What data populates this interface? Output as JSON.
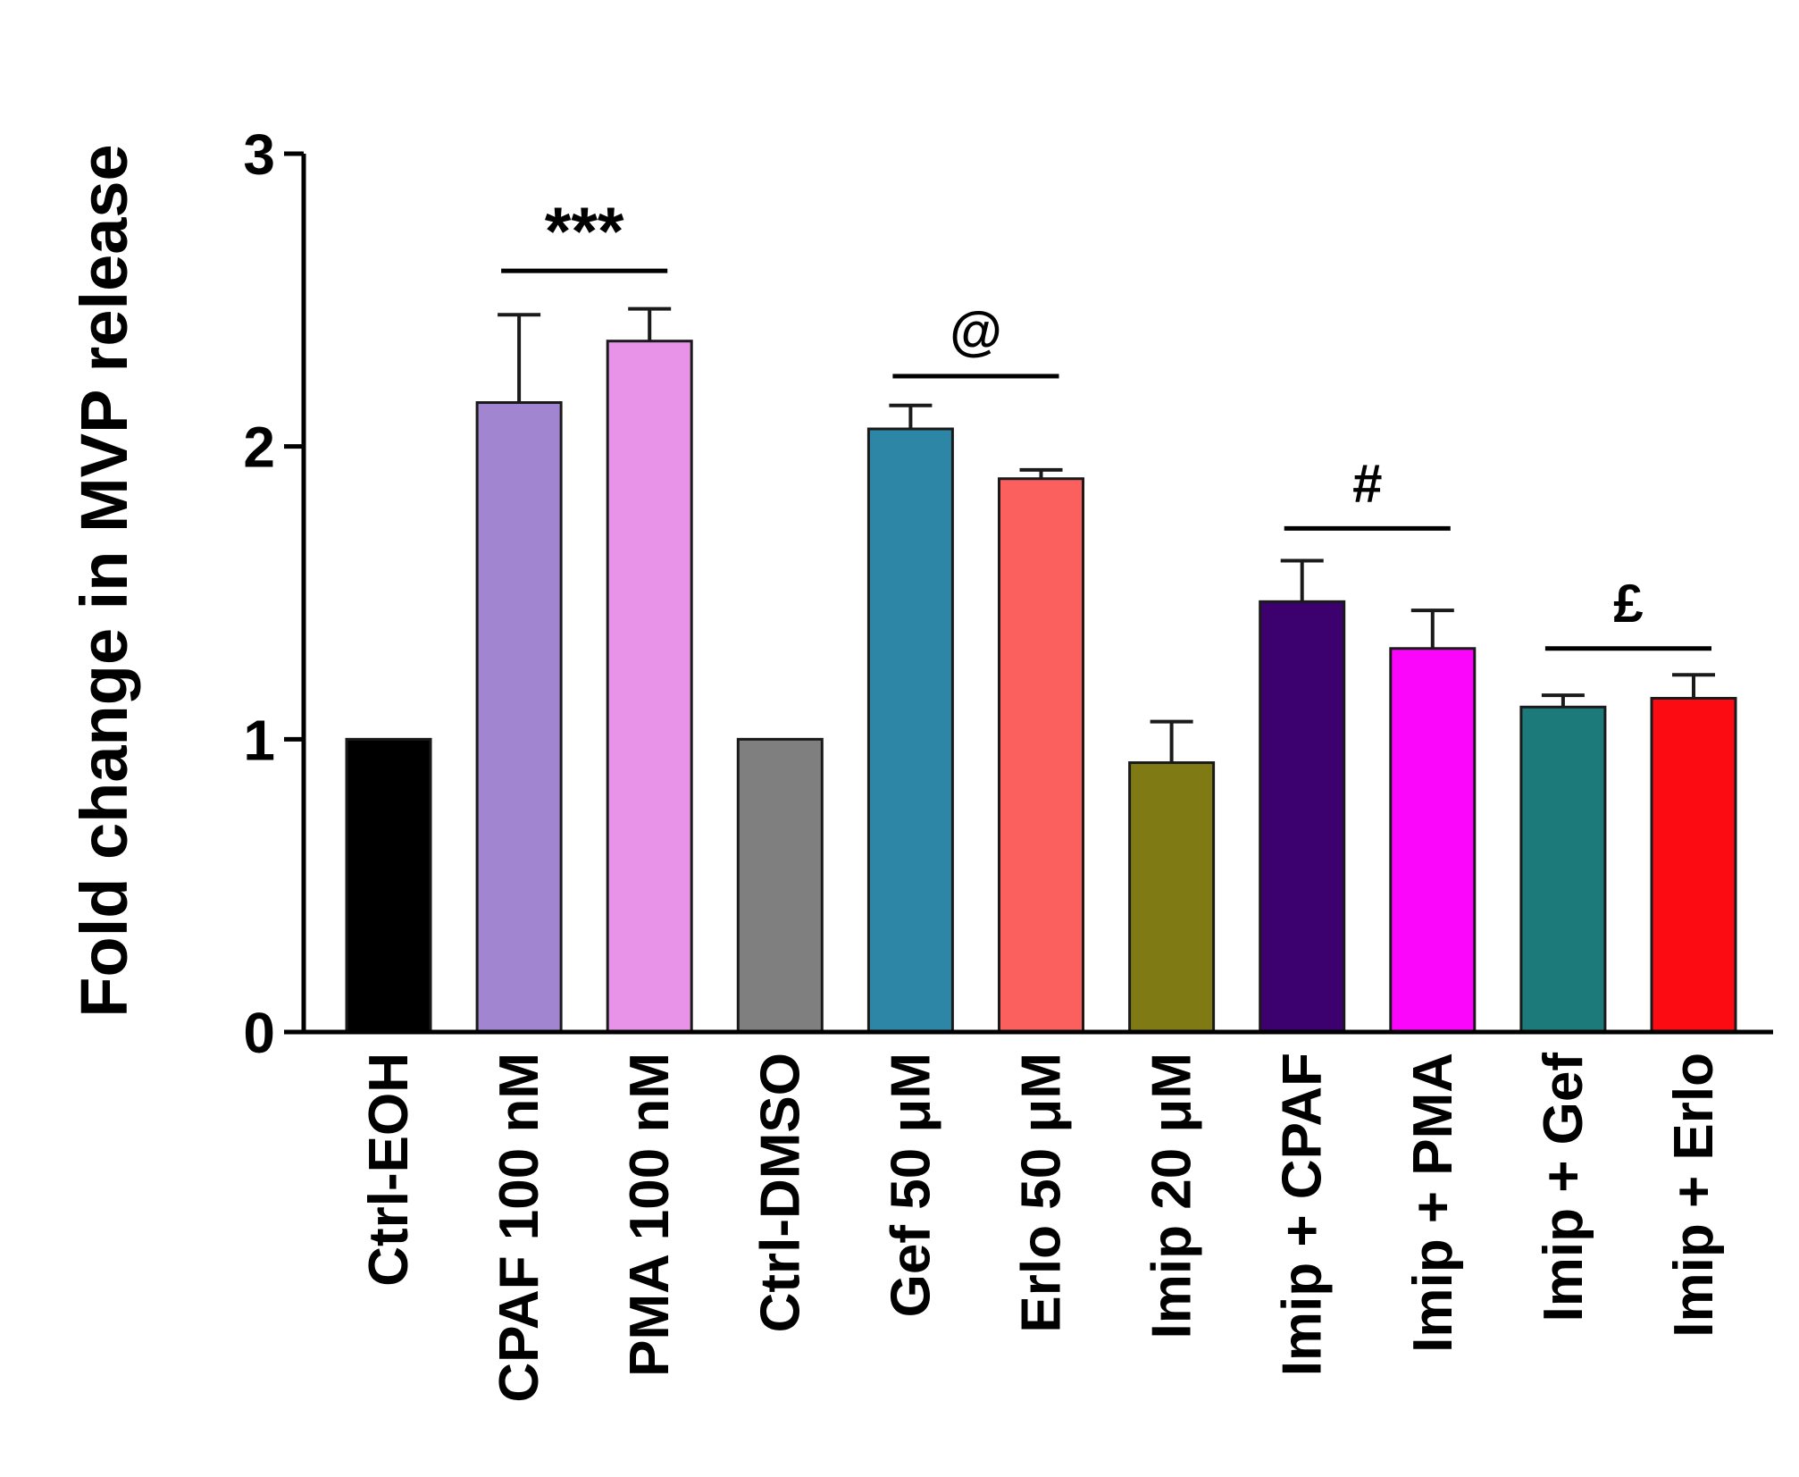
{
  "chart_data": {
    "type": "bar",
    "title": "",
    "xlabel": "",
    "ylabel": "Fold change in MVP release",
    "ylim": [
      0,
      3
    ],
    "yticks": [
      0,
      1,
      2,
      3
    ],
    "grid": false,
    "legend": "none",
    "categories": [
      "Ctrl-EOH",
      "CPAF 100 nM",
      "PMA 100 nM",
      "Ctrl-DMSO",
      "Gef 50 μM",
      "Erlo 50 μM",
      "Imip 20 μM",
      "Imip + CPAF",
      "Imip + PMA",
      "Imip + Gef",
      "Imip + Erlo"
    ],
    "values": [
      1.0,
      2.15,
      2.36,
      1.0,
      2.06,
      1.89,
      0.92,
      1.47,
      1.31,
      1.11,
      1.14
    ],
    "errors": [
      0.0,
      0.3,
      0.11,
      0.0,
      0.08,
      0.03,
      0.14,
      0.14,
      0.13,
      0.04,
      0.08
    ],
    "colors": [
      "#000000",
      "#a285d1",
      "#e893e8",
      "#7f7f7f",
      "#2e86a6",
      "#fb605e",
      "#7f7a14",
      "#3c006f",
      "#fb06fb",
      "#1c7a7a",
      "#fc0c12"
    ],
    "annotations": [
      {
        "label": "***",
        "from": 1,
        "to": 2,
        "y": 2.6
      },
      {
        "label": "@",
        "from": 4,
        "to": 5,
        "y": 2.24
      },
      {
        "label": "#",
        "from": 7,
        "to": 8,
        "y": 1.72
      },
      {
        "label": "£",
        "from": 9,
        "to": 10,
        "y": 1.31
      }
    ]
  }
}
